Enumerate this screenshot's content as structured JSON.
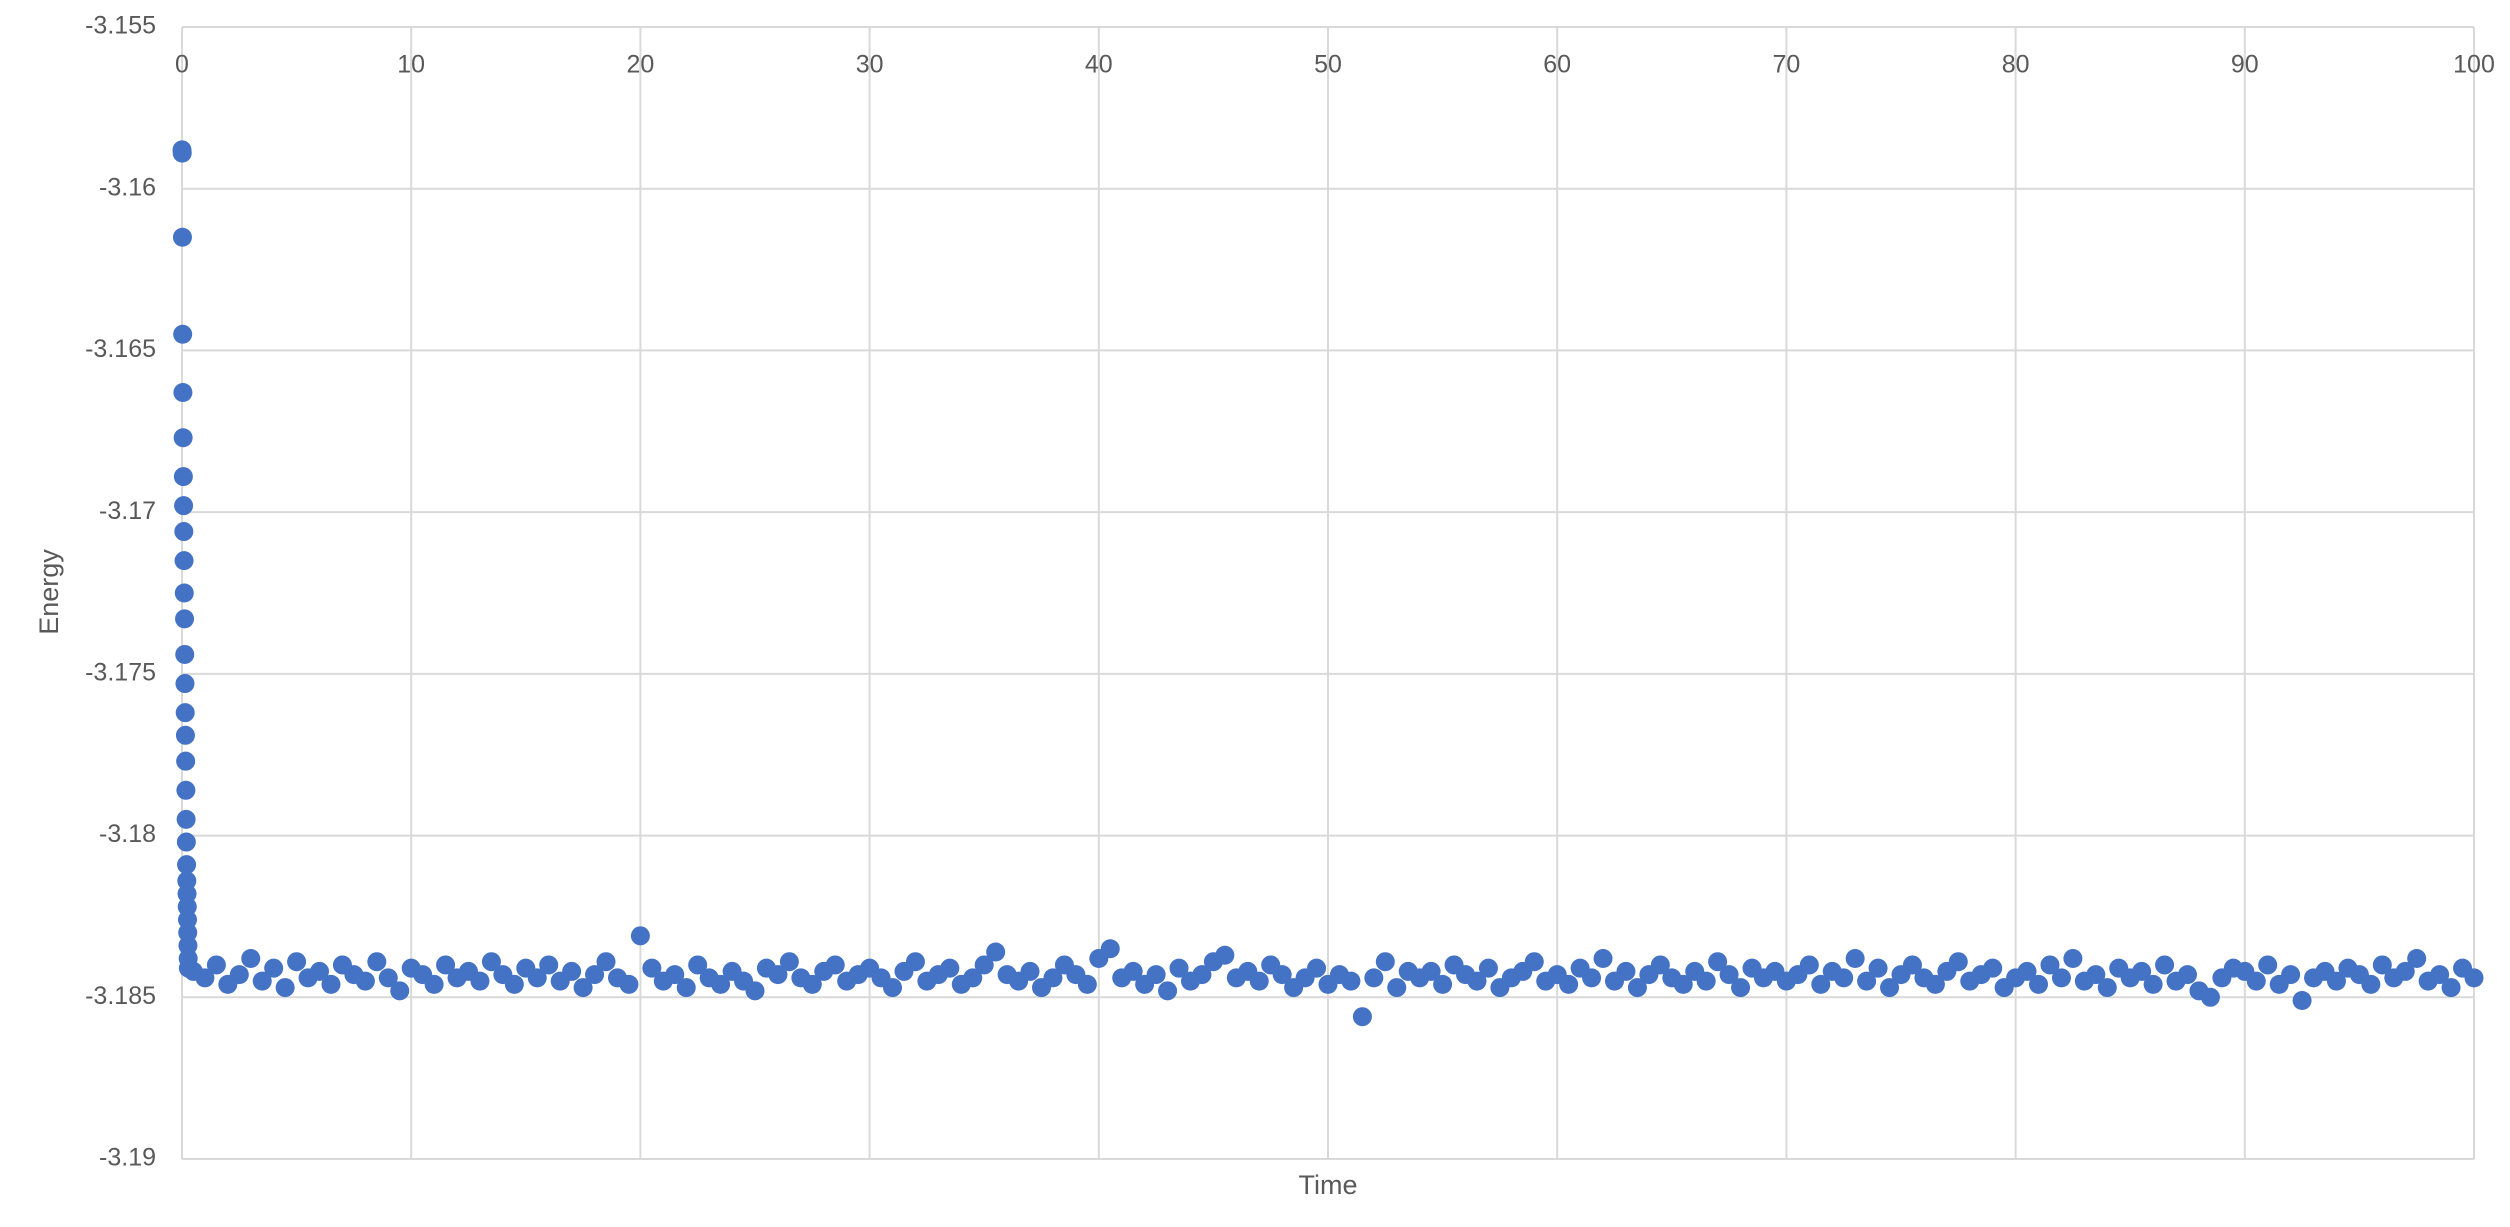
{
  "chart_data": {
    "type": "scatter",
    "x_label": "Time",
    "y_label": "Energy",
    "color": "#4472c4",
    "xlim": [
      0,
      100
    ],
    "xticks": [
      0,
      10,
      20,
      30,
      40,
      50,
      60,
      70,
      80,
      90,
      100
    ],
    "ylim": [
      -3.19,
      -3.155
    ],
    "yticks": [
      -3.19,
      -3.185,
      -3.18,
      -3.175,
      -3.17,
      -3.165,
      -3.16,
      -3.155
    ],
    "grid": true,
    "x": [
      0,
      0.01,
      0.02,
      0.03,
      0.04,
      0.05,
      0.06,
      0.07,
      0.08,
      0.09,
      0.1,
      0.11,
      0.12,
      0.13,
      0.14,
      0.15,
      0.16,
      0.17,
      0.18,
      0.19,
      0.2,
      0.21,
      0.22,
      0.23,
      0.24,
      0.25,
      0.26,
      0.27,
      0.28,
      0.5,
      1,
      1.5,
      2,
      2.5,
      3,
      3.5,
      4,
      4.5,
      5,
      5.5,
      6,
      6.5,
      7,
      7.5,
      8,
      8.5,
      9,
      9.5,
      10,
      10.5,
      11,
      11.5,
      12,
      12.5,
      13,
      13.5,
      14,
      14.5,
      15,
      15.5,
      16,
      16.5,
      17,
      17.5,
      18,
      18.5,
      19,
      19.5,
      20,
      20.5,
      21,
      21.5,
      22,
      22.5,
      23,
      23.5,
      24,
      24.5,
      25,
      25.5,
      26,
      26.5,
      27,
      27.5,
      28,
      28.5,
      29,
      29.5,
      30,
      30.5,
      31,
      31.5,
      32,
      32.5,
      33,
      33.5,
      34,
      34.5,
      35,
      35.5,
      36,
      36.5,
      37,
      37.5,
      38,
      38.5,
      39,
      39.5,
      40,
      40.5,
      41,
      41.5,
      42,
      42.5,
      43,
      43.5,
      44,
      44.5,
      45,
      45.5,
      46,
      46.5,
      47,
      47.5,
      48,
      48.5,
      49,
      49.5,
      50,
      50.5,
      51,
      51.5,
      52,
      52.5,
      53,
      53.5,
      54,
      54.5,
      55,
      55.5,
      56,
      56.5,
      57,
      57.5,
      58,
      58.5,
      59,
      59.5,
      60,
      60.5,
      61,
      61.5,
      62,
      62.5,
      63,
      63.5,
      64,
      64.5,
      65,
      65.5,
      66,
      66.5,
      67,
      67.5,
      68,
      68.5,
      69,
      69.5,
      70,
      70.5,
      71,
      71.5,
      72,
      72.5,
      73,
      73.5,
      74,
      74.5,
      75,
      75.5,
      76,
      76.5,
      77,
      77.5,
      78,
      78.5,
      79,
      79.5,
      80,
      80.5,
      81,
      81.5,
      82,
      82.5,
      83,
      83.5,
      84,
      84.5,
      85,
      85.5,
      86,
      86.5,
      87,
      87.5,
      88,
      88.5,
      89,
      89.5,
      90,
      90.5,
      91,
      91.5,
      92,
      92.5,
      93,
      93.5,
      94,
      94.5,
      95,
      95.5,
      96,
      96.5,
      97,
      97.5,
      98,
      98.5,
      99,
      99.5,
      100
    ],
    "values": [
      -3.1588,
      -3.1589,
      -3.1615,
      -3.1645,
      -3.1663,
      -3.1677,
      -3.1689,
      -3.1698,
      -3.1706,
      -3.1715,
      -3.1725,
      -3.1733,
      -3.1744,
      -3.1753,
      -3.1762,
      -3.1769,
      -3.1777,
      -3.1786,
      -3.1795,
      -3.1802,
      -3.1809,
      -3.1814,
      -3.1818,
      -3.1822,
      -3.1826,
      -3.183,
      -3.1834,
      -3.1838,
      -3.1841,
      -3.1842,
      -3.1844,
      -3.184,
      -3.1846,
      -3.1843,
      -3.1838,
      -3.1845,
      -3.1841,
      -3.1847,
      -3.1839,
      -3.1844,
      -3.1842,
      -3.1846,
      -3.184,
      -3.1843,
      -3.1845,
      -3.1839,
      -3.1844,
      -3.1848,
      -3.1841,
      -3.1843,
      -3.1846,
      -3.184,
      -3.1844,
      -3.1842,
      -3.1845,
      -3.1839,
      -3.1843,
      -3.1846,
      -3.1841,
      -3.1844,
      -3.184,
      -3.1845,
      -3.1842,
      -3.1847,
      -3.1843,
      -3.1839,
      -3.1844,
      -3.1846,
      -3.1831,
      -3.1841,
      -3.1845,
      -3.1843,
      -3.1847,
      -3.184,
      -3.1844,
      -3.1846,
      -3.1842,
      -3.1845,
      -3.1848,
      -3.1841,
      -3.1843,
      -3.1839,
      -3.1844,
      -3.1846,
      -3.1842,
      -3.184,
      -3.1845,
      -3.1843,
      -3.1841,
      -3.1844,
      -3.1847,
      -3.1842,
      -3.1839,
      -3.1845,
      -3.1843,
      -3.1841,
      -3.1846,
      -3.1844,
      -3.184,
      -3.1836,
      -3.1843,
      -3.1845,
      -3.1842,
      -3.1847,
      -3.1844,
      -3.184,
      -3.1843,
      -3.1846,
      -3.1838,
      -3.1835,
      -3.1844,
      -3.1842,
      -3.1846,
      -3.1843,
      -3.1848,
      -3.1841,
      -3.1845,
      -3.1843,
      -3.1839,
      -3.1837,
      -3.1844,
      -3.1842,
      -3.1845,
      -3.184,
      -3.1843,
      -3.1847,
      -3.1844,
      -3.1841,
      -3.1846,
      -3.1843,
      -3.1845,
      -3.1856,
      -3.1844,
      -3.1839,
      -3.1847,
      -3.1842,
      -3.1844,
      -3.1842,
      -3.1846,
      -3.184,
      -3.1843,
      -3.1845,
      -3.1841,
      -3.1847,
      -3.1844,
      -3.1842,
      -3.1839,
      -3.1845,
      -3.1843,
      -3.1846,
      -3.1841,
      -3.1844,
      -3.1838,
      -3.1845,
      -3.1842,
      -3.1847,
      -3.1843,
      -3.184,
      -3.1844,
      -3.1846,
      -3.1842,
      -3.1845,
      -3.1839,
      -3.1843,
      -3.1847,
      -3.1841,
      -3.1844,
      -3.1842,
      -3.1845,
      -3.1843,
      -3.184,
      -3.1846,
      -3.1842,
      -3.1844,
      -3.1838,
      -3.1845,
      -3.1841,
      -3.1847,
      -3.1843,
      -3.184,
      -3.1844,
      -3.1846,
      -3.1842,
      -3.1839,
      -3.1845,
      -3.1843,
      -3.1841,
      -3.1847,
      -3.1844,
      -3.1842,
      -3.1846,
      -3.184,
      -3.1844,
      -3.1838,
      -3.1845,
      -3.1843,
      -3.1847,
      -3.1841,
      -3.1844,
      -3.1842,
      -3.1846,
      -3.184,
      -3.1845,
      -3.1843,
      -3.1848,
      -3.185,
      -3.1844,
      -3.1841,
      -3.1842,
      -3.1845,
      -3.184,
      -3.1846,
      -3.1843,
      -3.1851,
      -3.1844,
      -3.1842,
      -3.1845,
      -3.1841,
      -3.1843,
      -3.1846,
      -3.184,
      -3.1844,
      -3.1842,
      -3.1838,
      -3.1845,
      -3.1843,
      -3.1847,
      -3.1841,
      -3.1844
    ]
  }
}
